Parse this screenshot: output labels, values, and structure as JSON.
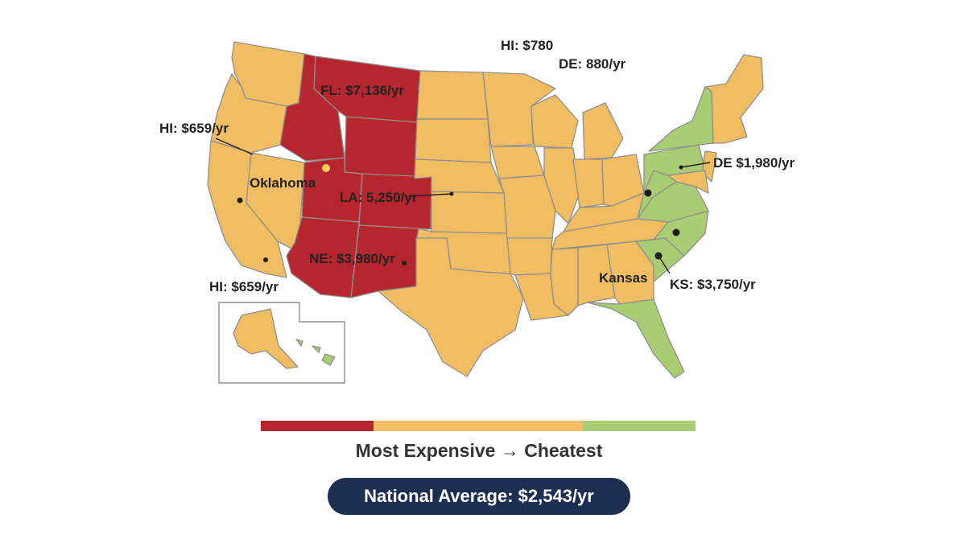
{
  "colors": {
    "most_expensive": "#b5262e",
    "mid": "#f0bd62",
    "cheapest": "#a9cd72",
    "border": "#8f8f8f",
    "water": "#ffffff",
    "badge_bg": "#1c2e52"
  },
  "map_labels": {
    "hi_780": "HI: $780",
    "de_880": "DE: 880/yr",
    "fl_7136": "FL: $7,136/yr",
    "hi_659_top": "HI: $659/yr",
    "oklahoma": "Oklahoma",
    "la_5250": "LA: 5,250/yr",
    "ne_3980": "NE: $3,980/yr",
    "hi_659_bottom": "HI: $659/yr",
    "de_1980": "DE $1,980/yr",
    "kansas": "Kansas",
    "ks_3750": "KS: $3,750/yr"
  },
  "legend": {
    "caption": "Most Expensive → Cheatest",
    "segments": [
      {
        "color": "#b5262e",
        "share": 0.26
      },
      {
        "color": "#f0bd62",
        "share": 0.48
      },
      {
        "color": "#a9cd72",
        "share": 0.26
      }
    ]
  },
  "national_average": "National Average: $2,543/yr"
}
